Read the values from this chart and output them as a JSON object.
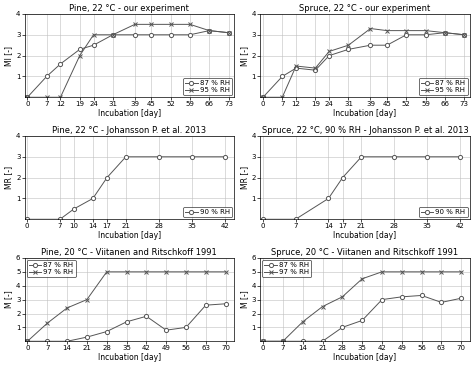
{
  "plots": [
    {
      "title": "Pine, 22 °C - our experiment",
      "ylabel": "MI [-]",
      "xlabel": "Incubation [day]",
      "xticks": [
        0,
        7,
        12,
        19,
        24,
        31,
        39,
        45,
        52,
        59,
        66,
        73
      ],
      "xlim": [
        -1,
        75
      ],
      "ylim": [
        0,
        4
      ],
      "yticks": [
        1,
        2,
        3,
        4
      ],
      "legend_loc": "lower right",
      "series": [
        {
          "label": "87 % RH",
          "marker": "o",
          "x": [
            0,
            7,
            12,
            19,
            24,
            31,
            39,
            45,
            52,
            59,
            66,
            73
          ],
          "y": [
            0,
            1.0,
            1.6,
            2.3,
            2.5,
            3.0,
            3.0,
            3.0,
            3.0,
            3.0,
            3.2,
            3.1
          ]
        },
        {
          "label": "95 % RH",
          "marker": "x",
          "x": [
            0,
            7,
            12,
            19,
            24,
            31,
            39,
            45,
            52,
            59,
            66,
            73
          ],
          "y": [
            0,
            0,
            0,
            2.0,
            3.0,
            3.0,
            3.5,
            3.5,
            3.5,
            3.5,
            3.2,
            3.1
          ]
        }
      ]
    },
    {
      "title": "Spruce, 22 °C - our experiment",
      "ylabel": "MI [-]",
      "xlabel": "Incubation [day]",
      "xticks": [
        0,
        7,
        12,
        19,
        24,
        31,
        39,
        45,
        52,
        59,
        66,
        73
      ],
      "xlim": [
        -1,
        75
      ],
      "ylim": [
        0,
        4
      ],
      "yticks": [
        1,
        2,
        3,
        4
      ],
      "legend_loc": "lower right",
      "series": [
        {
          "label": "87 % RH",
          "marker": "o",
          "x": [
            0,
            7,
            12,
            19,
            24,
            31,
            39,
            45,
            52,
            59,
            66,
            73
          ],
          "y": [
            0,
            1.0,
            1.4,
            1.3,
            2.0,
            2.3,
            2.5,
            2.5,
            3.0,
            3.0,
            3.1,
            3.0
          ]
        },
        {
          "label": "95 % RH",
          "marker": "x",
          "x": [
            0,
            7,
            12,
            19,
            24,
            31,
            39,
            45,
            52,
            59,
            66,
            73
          ],
          "y": [
            0,
            0,
            1.5,
            1.4,
            2.2,
            2.5,
            3.3,
            3.2,
            3.2,
            3.2,
            3.1,
            3.0
          ]
        }
      ]
    },
    {
      "title": "Pine, 22 °C - Johansson P. et al. 2013",
      "ylabel": "MR [-]",
      "xlabel": "Incubation [day]",
      "xticks": [
        0,
        7,
        10,
        14,
        17,
        21,
        28,
        35,
        42
      ],
      "xlim": [
        -0.5,
        44
      ],
      "ylim": [
        0,
        4
      ],
      "yticks": [
        1,
        2,
        3,
        4
      ],
      "legend_loc": "lower right",
      "series": [
        {
          "label": "90 % RH",
          "marker": "o",
          "x": [
            0,
            7,
            10,
            14,
            17,
            21,
            28,
            35,
            42
          ],
          "y": [
            0,
            0,
            0.5,
            1.0,
            2.0,
            3.0,
            3.0,
            3.0,
            3.0
          ]
        }
      ]
    },
    {
      "title": "Spruce, 22 °C, 90 % RH - Johansson P. et al. 2013",
      "ylabel": "MR [-]",
      "xlabel": "Incubation [day]",
      "xticks": [
        0,
        7,
        14,
        17,
        21,
        28,
        35,
        42
      ],
      "xlim": [
        -0.5,
        44
      ],
      "ylim": [
        0,
        4
      ],
      "yticks": [
        1,
        2,
        3,
        4
      ],
      "legend_loc": "lower right",
      "series": [
        {
          "label": "90 % RH",
          "marker": "o",
          "x": [
            0,
            7,
            14,
            17,
            21,
            28,
            35,
            42
          ],
          "y": [
            0,
            0,
            1.0,
            2.0,
            3.0,
            3.0,
            3.0,
            3.0
          ]
        }
      ]
    },
    {
      "title": "Pine, 20 °C - Viitanen and Ritschkoff 1991",
      "ylabel": "M [-]",
      "xlabel": "Incubation [day]",
      "xticks": [
        0,
        7,
        14,
        21,
        28,
        35,
        42,
        49,
        56,
        63,
        70
      ],
      "xlim": [
        -1,
        73
      ],
      "ylim": [
        0,
        6
      ],
      "yticks": [
        1,
        2,
        3,
        4,
        5,
        6
      ],
      "legend_loc": "upper left",
      "series": [
        {
          "label": "87 % RH",
          "marker": "o",
          "x": [
            0,
            7,
            14,
            21,
            28,
            35,
            42,
            49,
            56,
            63,
            70
          ],
          "y": [
            0,
            0,
            0,
            0.3,
            0.7,
            1.4,
            1.8,
            0.8,
            1.0,
            2.6,
            2.7
          ]
        },
        {
          "label": "97 % RH",
          "marker": "x",
          "x": [
            0,
            7,
            14,
            21,
            28,
            35,
            42,
            49,
            56,
            63,
            70
          ],
          "y": [
            0,
            1.3,
            2.4,
            3.0,
            5.0,
            5.0,
            5.0,
            5.0,
            5.0,
            5.0,
            5.0
          ]
        }
      ]
    },
    {
      "title": "Spruce, 20 °C - Viitanen and Ritschkoff 1991",
      "ylabel": "M [-]",
      "xlabel": "Incubation [day]",
      "xticks": [
        0,
        7,
        14,
        21,
        28,
        35,
        42,
        49,
        56,
        63,
        70
      ],
      "xlim": [
        -1,
        73
      ],
      "ylim": [
        0,
        6
      ],
      "yticks": [
        1,
        2,
        3,
        4,
        5,
        6
      ],
      "legend_loc": "upper left",
      "series": [
        {
          "label": "87 % RH",
          "marker": "o",
          "x": [
            0,
            7,
            14,
            21,
            28,
            35,
            42,
            49,
            56,
            63,
            70
          ],
          "y": [
            0,
            0,
            0,
            0,
            1.0,
            1.5,
            3.0,
            3.2,
            3.3,
            2.8,
            3.1
          ]
        },
        {
          "label": "97 % RH",
          "marker": "x",
          "x": [
            0,
            7,
            14,
            21,
            28,
            35,
            42,
            49,
            56,
            63,
            70
          ],
          "y": [
            0,
            0,
            1.4,
            2.5,
            3.2,
            4.5,
            5.0,
            5.0,
            5.0,
            5.0,
            5.0
          ]
        }
      ]
    }
  ],
  "line_color": "#555555",
  "legend_fontsize": 5.0,
  "title_fontsize": 6.0,
  "axis_label_fontsize": 5.5,
  "tick_fontsize": 5.0
}
